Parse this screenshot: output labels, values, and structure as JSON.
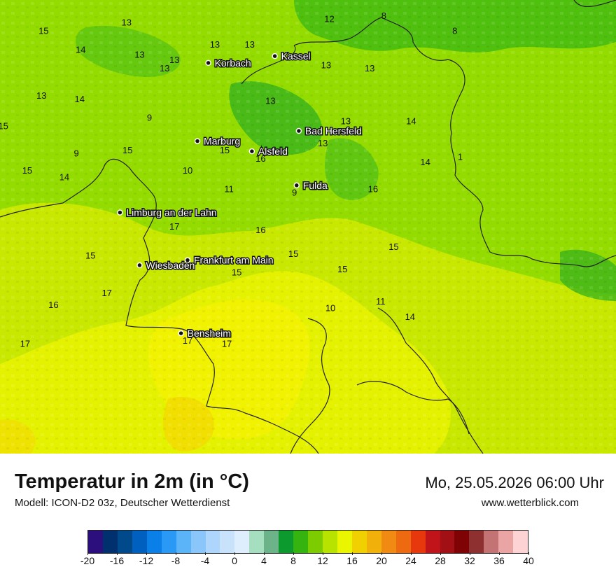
{
  "map": {
    "cities": [
      {
        "name": "Kassel",
        "lon": 9.48,
        "lat": 51.31
      },
      {
        "name": "Korbach",
        "lon": 8.87,
        "lat": 51.27
      },
      {
        "name": "Bad Hersfeld",
        "lon": 9.7,
        "lat": 50.87
      },
      {
        "name": "Marburg",
        "lon": 8.77,
        "lat": 50.81
      },
      {
        "name": "Alsfeld",
        "lon": 9.27,
        "lat": 50.75
      },
      {
        "name": "Fulda",
        "lon": 9.68,
        "lat": 50.55
      },
      {
        "name": "Limburg an der Lahn",
        "lon": 8.06,
        "lat": 50.39
      },
      {
        "name": "Frankfurt am Main",
        "lon": 8.68,
        "lat": 50.11
      },
      {
        "name": "Wiesbaden",
        "lon": 8.24,
        "lat": 50.08
      },
      {
        "name": "Bensheim",
        "lon": 8.62,
        "lat": 49.68
      }
    ],
    "values": [
      {
        "v": "12",
        "lon": 9.98,
        "lat": 51.53
      },
      {
        "v": "8",
        "lon": 10.48,
        "lat": 51.55
      },
      {
        "v": "8",
        "lon": 11.13,
        "lat": 51.46
      },
      {
        "v": "13",
        "lon": 8.12,
        "lat": 51.51
      },
      {
        "v": "15",
        "lon": 7.36,
        "lat": 51.46
      },
      {
        "v": "13",
        "lon": 8.93,
        "lat": 51.38
      },
      {
        "v": "13",
        "lon": 9.25,
        "lat": 51.38
      },
      {
        "v": "14",
        "lon": 7.7,
        "lat": 51.35
      },
      {
        "v": "13",
        "lon": 8.24,
        "lat": 51.32
      },
      {
        "v": "13",
        "lon": 8.56,
        "lat": 51.29
      },
      {
        "v": "13",
        "lon": 8.47,
        "lat": 51.24
      },
      {
        "v": "13",
        "lon": 9.95,
        "lat": 51.26
      },
      {
        "v": "13",
        "lon": 10.35,
        "lat": 51.24
      },
      {
        "v": "13",
        "lon": 7.34,
        "lat": 51.08
      },
      {
        "v": "14",
        "lon": 7.69,
        "lat": 51.06
      },
      {
        "v": "13",
        "lon": 9.44,
        "lat": 51.05
      },
      {
        "v": "9",
        "lon": 8.33,
        "lat": 50.95
      },
      {
        "v": "13",
        "lon": 10.13,
        "lat": 50.93
      },
      {
        "v": "14",
        "lon": 10.73,
        "lat": 50.93
      },
      {
        "v": "15",
        "lon": 6.99,
        "lat": 50.9
      },
      {
        "v": "13",
        "lon": 9.92,
        "lat": 50.8
      },
      {
        "v": "9",
        "lon": 7.66,
        "lat": 50.74
      },
      {
        "v": "15",
        "lon": 8.13,
        "lat": 50.76
      },
      {
        "v": "15",
        "lon": 9.02,
        "lat": 50.76
      },
      {
        "v": "16",
        "lon": 9.35,
        "lat": 50.71
      },
      {
        "v": "14",
        "lon": 10.86,
        "lat": 50.69
      },
      {
        "v": "1",
        "lon": 11.18,
        "lat": 50.72
      },
      {
        "v": "15",
        "lon": 7.21,
        "lat": 50.64
      },
      {
        "v": "10",
        "lon": 8.68,
        "lat": 50.64
      },
      {
        "v": "14",
        "lon": 7.55,
        "lat": 50.6
      },
      {
        "v": "11",
        "lon": 9.06,
        "lat": 50.53
      },
      {
        "v": "9",
        "lon": 9.66,
        "lat": 50.51
      },
      {
        "v": "16",
        "lon": 10.38,
        "lat": 50.53
      },
      {
        "v": "17",
        "lon": 8.56,
        "lat": 50.31
      },
      {
        "v": "16",
        "lon": 9.35,
        "lat": 50.29
      },
      {
        "v": "15",
        "lon": 10.57,
        "lat": 50.19
      },
      {
        "v": "15",
        "lon": 7.79,
        "lat": 50.14
      },
      {
        "v": "15",
        "lon": 9.65,
        "lat": 50.15
      },
      {
        "v": "15",
        "lon": 9.13,
        "lat": 50.04
      },
      {
        "v": "15",
        "lon": 10.1,
        "lat": 50.06
      },
      {
        "v": "17",
        "lon": 7.94,
        "lat": 49.92
      },
      {
        "v": "16",
        "lon": 7.45,
        "lat": 49.85
      },
      {
        "v": "10",
        "lon": 9.99,
        "lat": 49.83
      },
      {
        "v": "11",
        "lon": 10.45,
        "lat": 49.87
      },
      {
        "v": "14",
        "lon": 10.72,
        "lat": 49.78
      },
      {
        "v": "17",
        "lon": 7.19,
        "lat": 49.62
      },
      {
        "v": "17",
        "lon": 8.68,
        "lat": 49.64
      },
      {
        "v": "17",
        "lon": 9.04,
        "lat": 49.62
      }
    ]
  },
  "header": {
    "title": "Temperatur in 2m (in °C)",
    "subtitle": "Modell: ICON-D2 03z, Deutscher Wetterdienst",
    "datetime": "Mo, 25.05.2026 06:00 Uhr",
    "website": "www.wetterblick.com"
  },
  "legend": {
    "ticks": [
      "-20",
      "-16",
      "-12",
      "-8",
      "-4",
      "0",
      "4",
      "8",
      "12",
      "16",
      "20",
      "24",
      "28",
      "32",
      "36",
      "40"
    ],
    "colors": [
      "#2c0f7d",
      "#00306e",
      "#004a8c",
      "#0060bf",
      "#0a7fe8",
      "#2a98f5",
      "#5cb4f8",
      "#8ac6fa",
      "#aed5fb",
      "#c8e2fc",
      "#deeefd",
      "#a5dfc0",
      "#6cb38a",
      "#0c9a2f",
      "#35b30f",
      "#7dcc00",
      "#b8e300",
      "#eaf500",
      "#f0d000",
      "#f2b00a",
      "#f08a12",
      "#ee6a10",
      "#e6380c",
      "#c0141a",
      "#a20f14",
      "#7f0204",
      "#8f3030",
      "#c37373",
      "#eaa4a4",
      "#fdd3d3"
    ]
  }
}
